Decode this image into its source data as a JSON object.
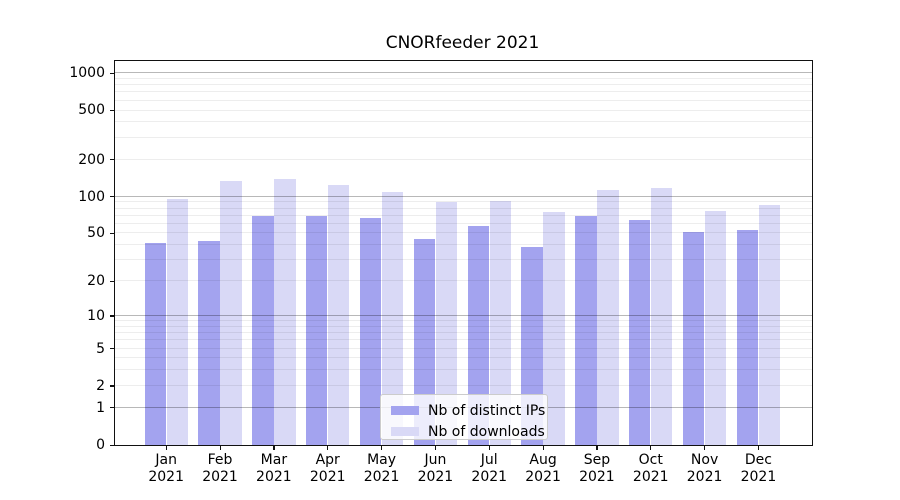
{
  "title": "CNORfeeder 2021",
  "chart_data": {
    "type": "bar",
    "title": "CNORfeeder 2021",
    "categories": [
      "Jan",
      "Feb",
      "Mar",
      "Apr",
      "May",
      "Jun",
      "Jul",
      "Aug",
      "Sep",
      "Oct",
      "Nov",
      "Dec"
    ],
    "year_label": "2021",
    "series": [
      {
        "name": "Nb of distinct IPs",
        "color": "#a3a3ef",
        "values": [
          42,
          43,
          70,
          70,
          67,
          45,
          58,
          39,
          70,
          65,
          51,
          53
        ]
      },
      {
        "name": "Nb of downloads",
        "color": "#d9d9f6",
        "values": [
          95,
          135,
          140,
          125,
          110,
          90,
          93,
          75,
          114,
          118,
          77,
          85
        ]
      }
    ],
    "yscale": "log1p",
    "ylim": [
      0,
      1300
    ],
    "yticks": [
      0,
      1,
      2,
      5,
      10,
      20,
      50,
      100,
      200,
      500,
      1000
    ],
    "major_gridlines": [
      1,
      10,
      100,
      1000
    ],
    "minor_gridlines": [
      2,
      3,
      4,
      5,
      6,
      7,
      8,
      9,
      20,
      30,
      40,
      50,
      60,
      70,
      80,
      90,
      200,
      300,
      400,
      500,
      600,
      700,
      800,
      900
    ],
    "grid": true,
    "legend_position": "lower-center-inside"
  }
}
